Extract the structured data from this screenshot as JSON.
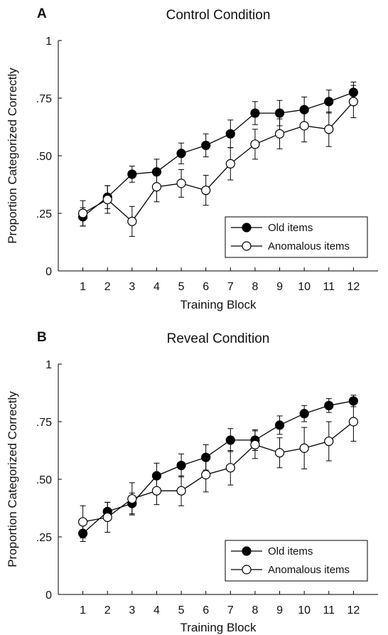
{
  "chart_data": [
    {
      "type": "line",
      "panel_letter": "A",
      "title": "Control Condition",
      "xlabel": "Training Block",
      "ylabel": "Proportion Categorized Correctly",
      "x": [
        1,
        2,
        3,
        4,
        5,
        6,
        7,
        8,
        9,
        10,
        11,
        12
      ],
      "xticks": [
        "1",
        "2",
        "3",
        "4",
        "5",
        "6",
        "7",
        "8",
        "9",
        "10",
        "11",
        "12"
      ],
      "yticks": [
        {
          "value": 0,
          "label": "0"
        },
        {
          "value": 0.25,
          "label": ".25"
        },
        {
          "value": 0.5,
          "label": ".50"
        },
        {
          "value": 0.75,
          "label": ".75"
        },
        {
          "value": 1,
          "label": "1"
        }
      ],
      "xlim": [
        0,
        13
      ],
      "ylim": [
        0,
        1
      ],
      "legend_position": "bottom-right",
      "grid": false,
      "series": [
        {
          "name": "Old items",
          "marker": "filled-circle",
          "color": "#000000",
          "values": [
            0.235,
            0.32,
            0.42,
            0.43,
            0.51,
            0.545,
            0.595,
            0.685,
            0.685,
            0.7,
            0.735,
            0.775
          ],
          "errors": [
            0.04,
            0.05,
            0.035,
            0.055,
            0.045,
            0.05,
            0.06,
            0.05,
            0.055,
            0.055,
            0.05,
            0.045
          ]
        },
        {
          "name": "Anomalous items",
          "marker": "open-circle",
          "color": "#000000",
          "values": [
            0.25,
            0.31,
            0.215,
            0.365,
            0.38,
            0.35,
            0.465,
            0.55,
            0.595,
            0.63,
            0.615,
            0.735
          ],
          "errors": [
            0.055,
            0.06,
            0.065,
            0.065,
            0.06,
            0.065,
            0.07,
            0.065,
            0.065,
            0.07,
            0.075,
            0.07
          ]
        }
      ]
    },
    {
      "type": "line",
      "panel_letter": "B",
      "title": "Reveal Condition",
      "xlabel": "Training Block",
      "ylabel": "Proportion Categorized Correctly",
      "x": [
        1,
        2,
        3,
        4,
        5,
        6,
        7,
        8,
        9,
        10,
        11,
        12
      ],
      "xticks": [
        "1",
        "2",
        "3",
        "4",
        "5",
        "6",
        "7",
        "8",
        "9",
        "10",
        "11",
        "12"
      ],
      "yticks": [
        {
          "value": 0,
          "label": "0"
        },
        {
          "value": 0.25,
          "label": ".25"
        },
        {
          "value": 0.5,
          "label": ".50"
        },
        {
          "value": 0.75,
          "label": ".75"
        },
        {
          "value": 1,
          "label": "1"
        }
      ],
      "xlim": [
        0,
        13
      ],
      "ylim": [
        0,
        1
      ],
      "legend_position": "bottom-right",
      "grid": false,
      "series": [
        {
          "name": "Old items",
          "marker": "filled-circle",
          "color": "#000000",
          "values": [
            0.265,
            0.36,
            0.395,
            0.515,
            0.56,
            0.595,
            0.67,
            0.67,
            0.735,
            0.785,
            0.82,
            0.84
          ],
          "errors": [
            0.035,
            0.04,
            0.045,
            0.055,
            0.05,
            0.055,
            0.05,
            0.045,
            0.04,
            0.035,
            0.03,
            0.025
          ]
        },
        {
          "name": "Anomalous items",
          "marker": "open-circle",
          "color": "#000000",
          "values": [
            0.315,
            0.335,
            0.415,
            0.45,
            0.45,
            0.52,
            0.55,
            0.65,
            0.615,
            0.635,
            0.665,
            0.75
          ],
          "errors": [
            0.07,
            0.065,
            0.07,
            0.06,
            0.065,
            0.075,
            0.075,
            0.06,
            0.065,
            0.09,
            0.085,
            0.085
          ]
        }
      ]
    }
  ]
}
